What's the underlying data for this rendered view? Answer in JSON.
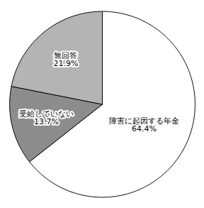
{
  "chart_data": {
    "type": "pie",
    "categories": [
      "障害に起因する年金",
      "受給していない",
      "無回答"
    ],
    "values": [
      64.4,
      13.7,
      21.9
    ],
    "value_labels": [
      "64.4%",
      "13.7%",
      "21.9%"
    ],
    "colors": [
      "#ffffff",
      "#8c8c8c",
      "#b4b4b4"
    ],
    "data_labels": true
  }
}
